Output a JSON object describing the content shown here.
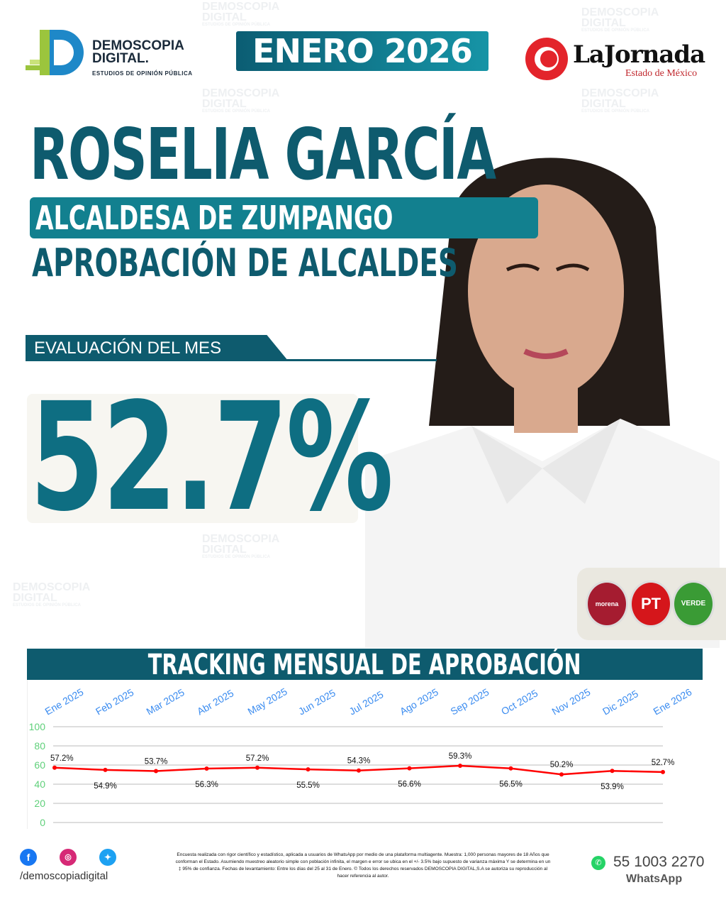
{
  "brand": {
    "name_line1": "DEMOSCOPIA",
    "name_line2": "DIGITAL.",
    "tagline": "ESTUDIOS DE OPINIÓN PÚBLICA"
  },
  "watermark": {
    "line1": "DEMOSCOPIA",
    "line2": "DIGITAL",
    "line3": "ESTUDIOS DE OPINIÓN PÚBLICA"
  },
  "date_banner": "ENERO 2026",
  "partner": {
    "name": "LaJornada",
    "subtitle": "Estado de México"
  },
  "candidate": {
    "name": "ROSELIA GARCÍA",
    "role": "ALCALDESA DE ZUMPANGO"
  },
  "subtitle": "APROBACIÓN DE ALCALDES",
  "evaluation": {
    "label": "EVALUACIÓN DEL MES",
    "value": "52.7%"
  },
  "parties": [
    {
      "label": "morena",
      "color": "#a51c30"
    },
    {
      "label": "PT",
      "color": "#d5161b"
    },
    {
      "label": "VERDE",
      "color": "#3a9b35"
    }
  ],
  "chart_data": {
    "type": "line",
    "title": "TRACKING MENSUAL DE APROBACIÓN",
    "categories": [
      "Ene 2025",
      "Feb 2025",
      "Mar 2025",
      "Abr 2025",
      "May 2025",
      "Jun 2025",
      "Jul 2025",
      "Ago 2025",
      "Sep 2025",
      "Oct 2025",
      "Nov 2025",
      "Dic 2025",
      "Ene 2026"
    ],
    "values": [
      57.2,
      54.9,
      53.7,
      56.3,
      57.2,
      55.5,
      54.3,
      56.6,
      59.3,
      56.5,
      50.2,
      53.9,
      52.7
    ],
    "labels": [
      "57.2%",
      "54.9%",
      "53.7%",
      "56.3%",
      "57.2%",
      "55.5%",
      "54.3%",
      "56.6%",
      "59.3%",
      "56.5%",
      "50.2%",
      "53.9%",
      "52.7%"
    ],
    "yticks": [
      0,
      20,
      40,
      60,
      80,
      100
    ],
    "ylim": [
      0,
      100
    ],
    "grid": true,
    "line_color": "#ff0000",
    "xtick_color": "#3b8cf0",
    "ytick_color": "#5fd07a"
  },
  "footer": {
    "handle": "/demoscopiadigital",
    "disclaimer": "Encuesta realizada con rigor científico y estadístico, aplicada a usuarios de WhatsApp por medio de una plataforma multiagente. Muestra: 1,000 personas mayores de 18 Años que conforman el Estado. Asumiendo muestreo aleatorio simple con población infinita, el margen e error se ubica en el +/- 3.5% bajo supuesto de varianza máxima Y se determina en un ‡ 95% de confianza. Fechas de levantamiento: Entre los días del 25 al 31 de Enero. © Todos los derechos reservados DEMOSCOPIA DIGITAL,S.A se autoriza su reproducción al hacer referencia al autor.",
    "phone": "55 1003 2270",
    "whatsapp": "WhatsApp"
  }
}
